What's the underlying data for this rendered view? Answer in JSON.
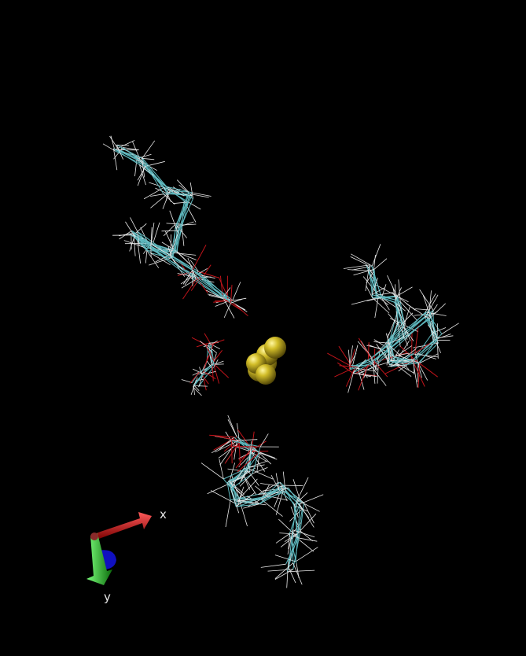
{
  "scene": {
    "background_color": "#000000",
    "bond_colors": {
      "carbon": "#5fb9bf",
      "hydrogen": "#e8e8e8",
      "oxygen": "#c0141a"
    },
    "ligand_color": "#c8b41a",
    "clusters": [
      {
        "id": "top-left"
      },
      {
        "id": "right"
      },
      {
        "id": "bottom"
      },
      {
        "id": "left-small"
      }
    ]
  },
  "axes": {
    "x_label": "x",
    "y_label": "y",
    "x_color": "#c0141a",
    "y_color": "#1fbf1f",
    "z_color": "#1010c0"
  }
}
